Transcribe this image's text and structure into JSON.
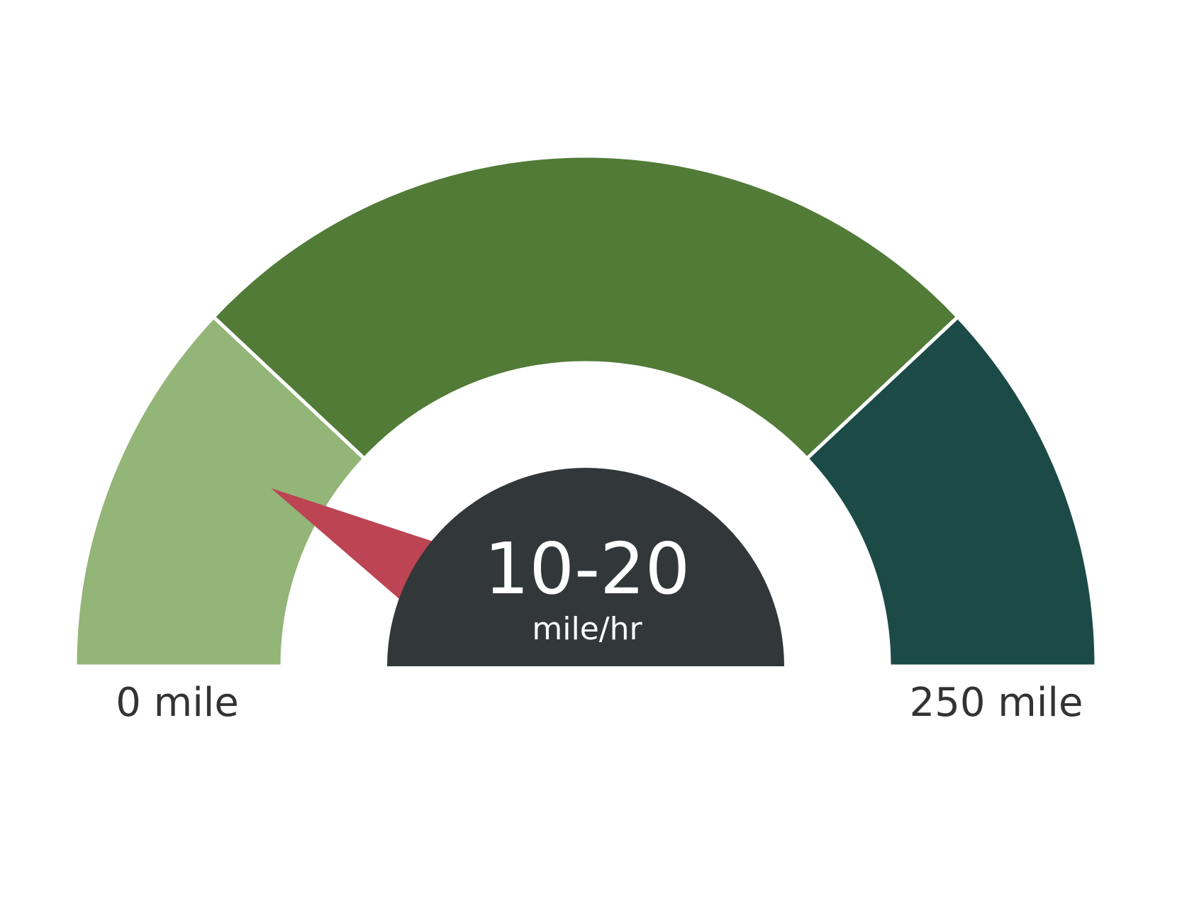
{
  "chart_data": {
    "type": "gauge",
    "min": 0,
    "max": 250,
    "min_label": "0 mile",
    "max_label": "250 mile",
    "value_label": "10-20",
    "unit_label": "mile/hr",
    "needle_value": 41,
    "bands": [
      {
        "from": 0,
        "to": 60,
        "color": "#93b578"
      },
      {
        "from": 60,
        "to": 190,
        "color": "#517b37"
      },
      {
        "from": 190,
        "to": 250,
        "color": "#1c4b47"
      }
    ],
    "needle_color": "#bc4453",
    "hub_color": "#32373a",
    "text_color": "#333333"
  }
}
